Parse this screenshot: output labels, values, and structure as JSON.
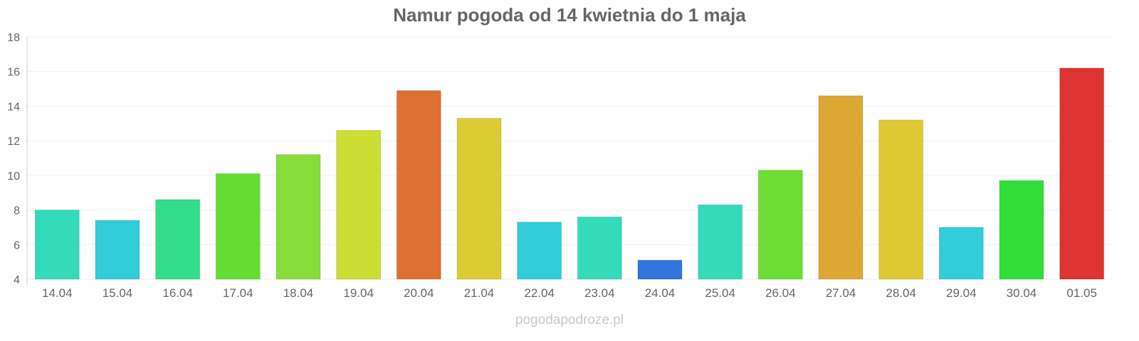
{
  "chart_data": {
    "type": "bar",
    "title": "Namur pogoda od 14 kwietnia do 1 maja",
    "xlabel": "",
    "ylabel": "",
    "ylim": [
      4,
      18
    ],
    "yticks": [
      4,
      6,
      8,
      10,
      12,
      14,
      16,
      18
    ],
    "grid": true,
    "categories": [
      "14.04",
      "15.04",
      "16.04",
      "17.04",
      "18.04",
      "19.04",
      "20.04",
      "21.04",
      "22.04",
      "23.04",
      "24.04",
      "25.04",
      "26.04",
      "27.04",
      "28.04",
      "29.04",
      "30.04",
      "01.05"
    ],
    "values": [
      8.0,
      7.4,
      8.6,
      10.1,
      11.2,
      12.6,
      14.9,
      13.3,
      7.3,
      7.6,
      5.1,
      8.3,
      10.3,
      14.6,
      13.2,
      7.0,
      9.7,
      16.2
    ],
    "colors": [
      "#33dbbb",
      "#33ccd9",
      "#33dd8a",
      "#66dd33",
      "#88dd3a",
      "#ccdd33",
      "#dd7033",
      "#dccc33",
      "#33ccd9",
      "#33dbbb",
      "#3374dd",
      "#33dbbb",
      "#6ddd33",
      "#dda733",
      "#dcc933",
      "#33ccd9",
      "#33dd3a",
      "#dd3333"
    ]
  },
  "footer": "pogodapodroze.pl"
}
